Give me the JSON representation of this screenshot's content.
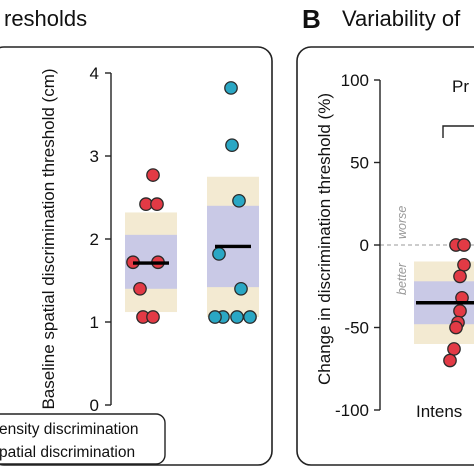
{
  "panel_a": {
    "title": "resholds"
  },
  "panel_b": {
    "letter": "B",
    "title": "Variability of",
    "header_fragment": "Pr",
    "category_fragment": "Intens",
    "annotation_worse": "worse",
    "annotation_better": "better"
  },
  "legend": {
    "items": [
      {
        "label": "ensity discrimination",
        "color": "#e23a45"
      },
      {
        "label": "patial discrimination",
        "color": "#2aa7c4"
      }
    ]
  },
  "colors": {
    "red_marker": "#e23a45",
    "blue_marker": "#2aa7c4",
    "outer_band": "#f3ead2",
    "inner_band": "#c9c9e6"
  },
  "chart_data": [
    {
      "type": "scatter",
      "panel": "A",
      "title": "",
      "xlabel": "",
      "ylabel": "Baseline spatial discrimination threshold (cm)",
      "ylim": [
        0,
        4
      ],
      "yticks": [
        "0",
        "1",
        "2",
        "3",
        "4"
      ],
      "series": [
        {
          "name": "",
          "values": [
            2.77,
            2.42,
            2.42,
            1.72,
            1.72,
            1.4,
            1.06,
            1.06
          ],
          "mean": 1.71,
          "inner_band": [
            1.4,
            2.05
          ],
          "outer_band": [
            1.12,
            2.32
          ]
        },
        {
          "name": "",
          "values": [
            3.82,
            3.13,
            2.46,
            1.82,
            1.4,
            1.06,
            1.06,
            1.06,
            1.06
          ],
          "mean": 1.91,
          "inner_band": [
            1.42,
            2.4
          ],
          "outer_band": [
            1.06,
            2.75
          ]
        }
      ]
    },
    {
      "type": "scatter",
      "panel": "B",
      "title": "",
      "xlabel": "",
      "ylabel": "Change in discrimination threshold (%)",
      "ylim": [
        -100,
        100
      ],
      "yticks": [
        "-100",
        "-50",
        "0",
        "50",
        "100"
      ],
      "reference_line": 0,
      "series": [
        {
          "name": "",
          "values": [
            0,
            0,
            -12,
            -19,
            -32,
            -40,
            -47,
            -50,
            -63,
            -70
          ],
          "mean": -35,
          "inner_band": [
            -48,
            -22
          ],
          "outer_band": [
            -60,
            -10
          ]
        }
      ]
    }
  ]
}
